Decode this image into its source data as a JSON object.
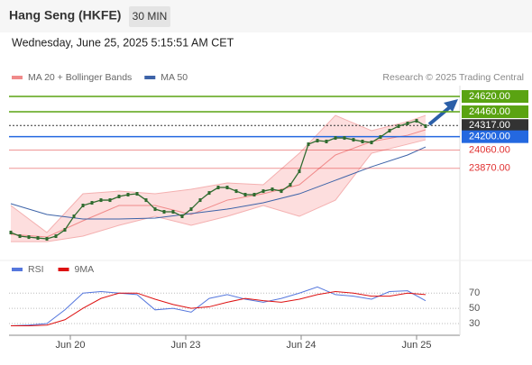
{
  "header": {
    "title": "Hang Seng (HKFE)",
    "interval": "30 MIN",
    "date": "Wednesday, June 25, 2025 5:15:51 AM CET",
    "credit": "Research © 2025 Trading Central"
  },
  "chart_data": [
    {
      "type": "price",
      "legend": [
        {
          "name": "MA 20 + Bollinger Bands",
          "color": "#f08a8a"
        },
        {
          "name": "MA 50",
          "color": "#3d63a8"
        }
      ],
      "xlim": [
        0,
        49
      ],
      "ylim": [
        23040,
        24733
      ],
      "xticks": [
        {
          "value": 6.6,
          "label": "Jun 20"
        },
        {
          "value": 19.4,
          "label": "Jun 23"
        },
        {
          "value": 32.2,
          "label": "Jun 24"
        },
        {
          "value": 45,
          "label": "Jun 25"
        }
      ],
      "price": {
        "color": "#2f6b2f",
        "x": [
          0,
          1,
          2,
          3,
          4,
          5,
          6,
          7,
          8,
          9,
          10,
          11,
          12,
          13,
          14,
          15,
          16,
          17,
          18,
          19,
          20,
          21,
          22,
          23,
          24,
          25,
          26,
          27,
          28,
          29,
          30,
          31,
          32,
          33,
          34,
          35,
          36,
          37,
          38,
          39,
          40,
          41,
          42,
          43,
          44,
          45,
          46
        ],
        "values": [
          23200,
          23162,
          23152,
          23143,
          23134,
          23162,
          23228,
          23369,
          23482,
          23510,
          23538,
          23538,
          23576,
          23595,
          23604,
          23538,
          23444,
          23416,
          23416,
          23369,
          23444,
          23538,
          23613,
          23670,
          23670,
          23632,
          23595,
          23595,
          23632,
          23651,
          23632,
          23698,
          23839,
          24121,
          24159,
          24150,
          24187,
          24187,
          24168,
          24150,
          24140,
          24197,
          24263,
          24310,
          24338,
          24366,
          24310
        ]
      },
      "indicators": {
        "x": [
          0,
          4,
          8,
          12,
          16,
          20,
          24,
          28,
          32,
          36,
          40,
          44,
          46
        ],
        "ma20": [
          23181,
          23153,
          23322,
          23482,
          23482,
          23388,
          23538,
          23604,
          23698,
          24009,
          24150,
          24215,
          24272
        ],
        "upper": [
          23482,
          23200,
          23604,
          23632,
          23604,
          23651,
          23717,
          23698,
          24027,
          24422,
          24263,
          24357,
          24422
        ],
        "lower": [
          23105,
          23105,
          23162,
          23275,
          23369,
          23275,
          23369,
          23482,
          23369,
          23538,
          24027,
          24121,
          24168
        ],
        "ma50": [
          23501,
          23388,
          23341,
          23341,
          23350,
          23397,
          23444,
          23510,
          23604,
          23745,
          23886,
          24009,
          24093
        ]
      },
      "levels": [
        {
          "value": 24620,
          "label": "24620.00",
          "color": "#5aa312",
          "line": "solid",
          "box": true
        },
        {
          "value": 24460,
          "label": "24460.00",
          "color": "#5aa312",
          "line": "solid",
          "box": true
        },
        {
          "value": 24317,
          "label": "24317.00",
          "color": "#333333",
          "line": "dotted",
          "box": true
        },
        {
          "value": 24200,
          "label": "24200.00",
          "color": "#2468e0",
          "line": "solid",
          "box": true
        },
        {
          "value": 24060,
          "label": "24060.00",
          "color": "#e03030",
          "line": "solid",
          "box": false
        },
        {
          "value": 23870,
          "label": "23870.00",
          "color": "#e03030",
          "line": "solid",
          "box": false
        }
      ]
    },
    {
      "type": "rsi",
      "ylim": [
        17,
        88
      ],
      "yticks": [
        70,
        50,
        30
      ],
      "x": [
        0,
        2,
        4,
        6,
        8,
        10,
        12,
        14,
        16,
        18,
        20,
        22,
        24,
        26,
        28,
        30,
        32,
        34,
        36,
        38,
        40,
        42,
        44,
        46
      ],
      "series": [
        {
          "name": "RSI",
          "color": "#5577dd",
          "values": [
            27,
            28,
            30,
            48,
            70,
            72,
            70,
            68,
            48,
            50,
            45,
            63,
            68,
            62,
            58,
            63,
            70,
            78,
            68,
            66,
            62,
            72,
            73,
            60
          ]
        },
        {
          "name": "9MA",
          "color": "#dd1111",
          "values": [
            27,
            27,
            28,
            35,
            50,
            63,
            70,
            70,
            62,
            55,
            50,
            52,
            58,
            63,
            60,
            58,
            62,
            68,
            72,
            70,
            66,
            66,
            70,
            68
          ]
        }
      ]
    }
  ]
}
